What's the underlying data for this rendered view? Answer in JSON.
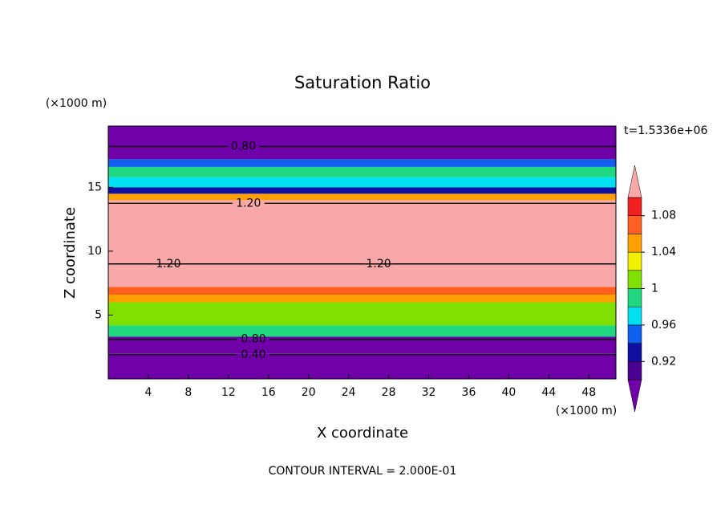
{
  "chart_data": {
    "type": "contour",
    "title": "Saturation Ratio",
    "x_label": "X coordinate",
    "y_label": "Z coordinate",
    "x_unit": "(×1000 m)",
    "y_unit": "(×1000 m)",
    "time_label": "t=1.5336e+06",
    "footer": "CONTOUR INTERVAL = 2.000E-01",
    "xlim": [
      0,
      50.7
    ],
    "ylim": [
      0,
      19.8
    ],
    "xticks": [
      4,
      8,
      12,
      16,
      20,
      24,
      28,
      32,
      36,
      40,
      44,
      48
    ],
    "yticks": [
      5,
      10,
      15
    ],
    "colorbar": {
      "levels": [
        0.9,
        0.92,
        0.94,
        0.96,
        0.98,
        1,
        1.02,
        1.04,
        1.06,
        1.08,
        1.1
      ],
      "colors": [
        "#7000a8",
        "#4a0090",
        "#1010a0",
        "#1060f0",
        "#00e0f0",
        "#20d880",
        "#80e000",
        "#f0f000",
        "#ffa000",
        "#ff6020",
        "#f02020",
        "#f8a8a8"
      ],
      "ticks": [
        0.92,
        0.96,
        1,
        1.04,
        1.08
      ]
    },
    "field": [
      {
        "z0": 0,
        "z1": 2.0,
        "value": 0.4
      },
      {
        "z0": 2.0,
        "z1": 3.3,
        "value": 0.8
      },
      {
        "z0": 3.3,
        "z1": 4.2,
        "value": 0.99
      },
      {
        "z0": 4.2,
        "z1": 6.0,
        "value": 1.01
      },
      {
        "z0": 6.0,
        "z1": 6.6,
        "value": 1.05
      },
      {
        "z0": 6.6,
        "z1": 7.2,
        "value": 1.07
      },
      {
        "z0": 7.2,
        "z1": 14.0,
        "value": 1.2
      },
      {
        "z0": 14.0,
        "z1": 14.5,
        "value": 1.05
      },
      {
        "z0": 14.5,
        "z1": 15.0,
        "value": 0.93
      },
      {
        "z0": 15.0,
        "z1": 15.8,
        "value": 0.97
      },
      {
        "z0": 15.8,
        "z1": 16.6,
        "value": 0.99
      },
      {
        "z0": 16.6,
        "z1": 17.2,
        "value": 0.95
      },
      {
        "z0": 17.2,
        "z1": 19.8,
        "value": 0.8
      }
    ],
    "contours": [
      {
        "value": 0.8,
        "label": "0.80",
        "z": 18.2,
        "x": 13.5
      },
      {
        "value": 1.2,
        "label": "1.20",
        "z": 13.75,
        "x": 14
      },
      {
        "value": 1.2,
        "label": "1.20",
        "z": 9.0,
        "x": 6
      },
      {
        "value": 1.2,
        "label": "1.20",
        "z": 9.0,
        "x": 27
      },
      {
        "value": 0.8,
        "label": "0.80",
        "z": 3.1,
        "x": 14.5
      },
      {
        "value": 0.4,
        "label": "0.40",
        "z": 1.9,
        "x": 14.5
      }
    ]
  }
}
